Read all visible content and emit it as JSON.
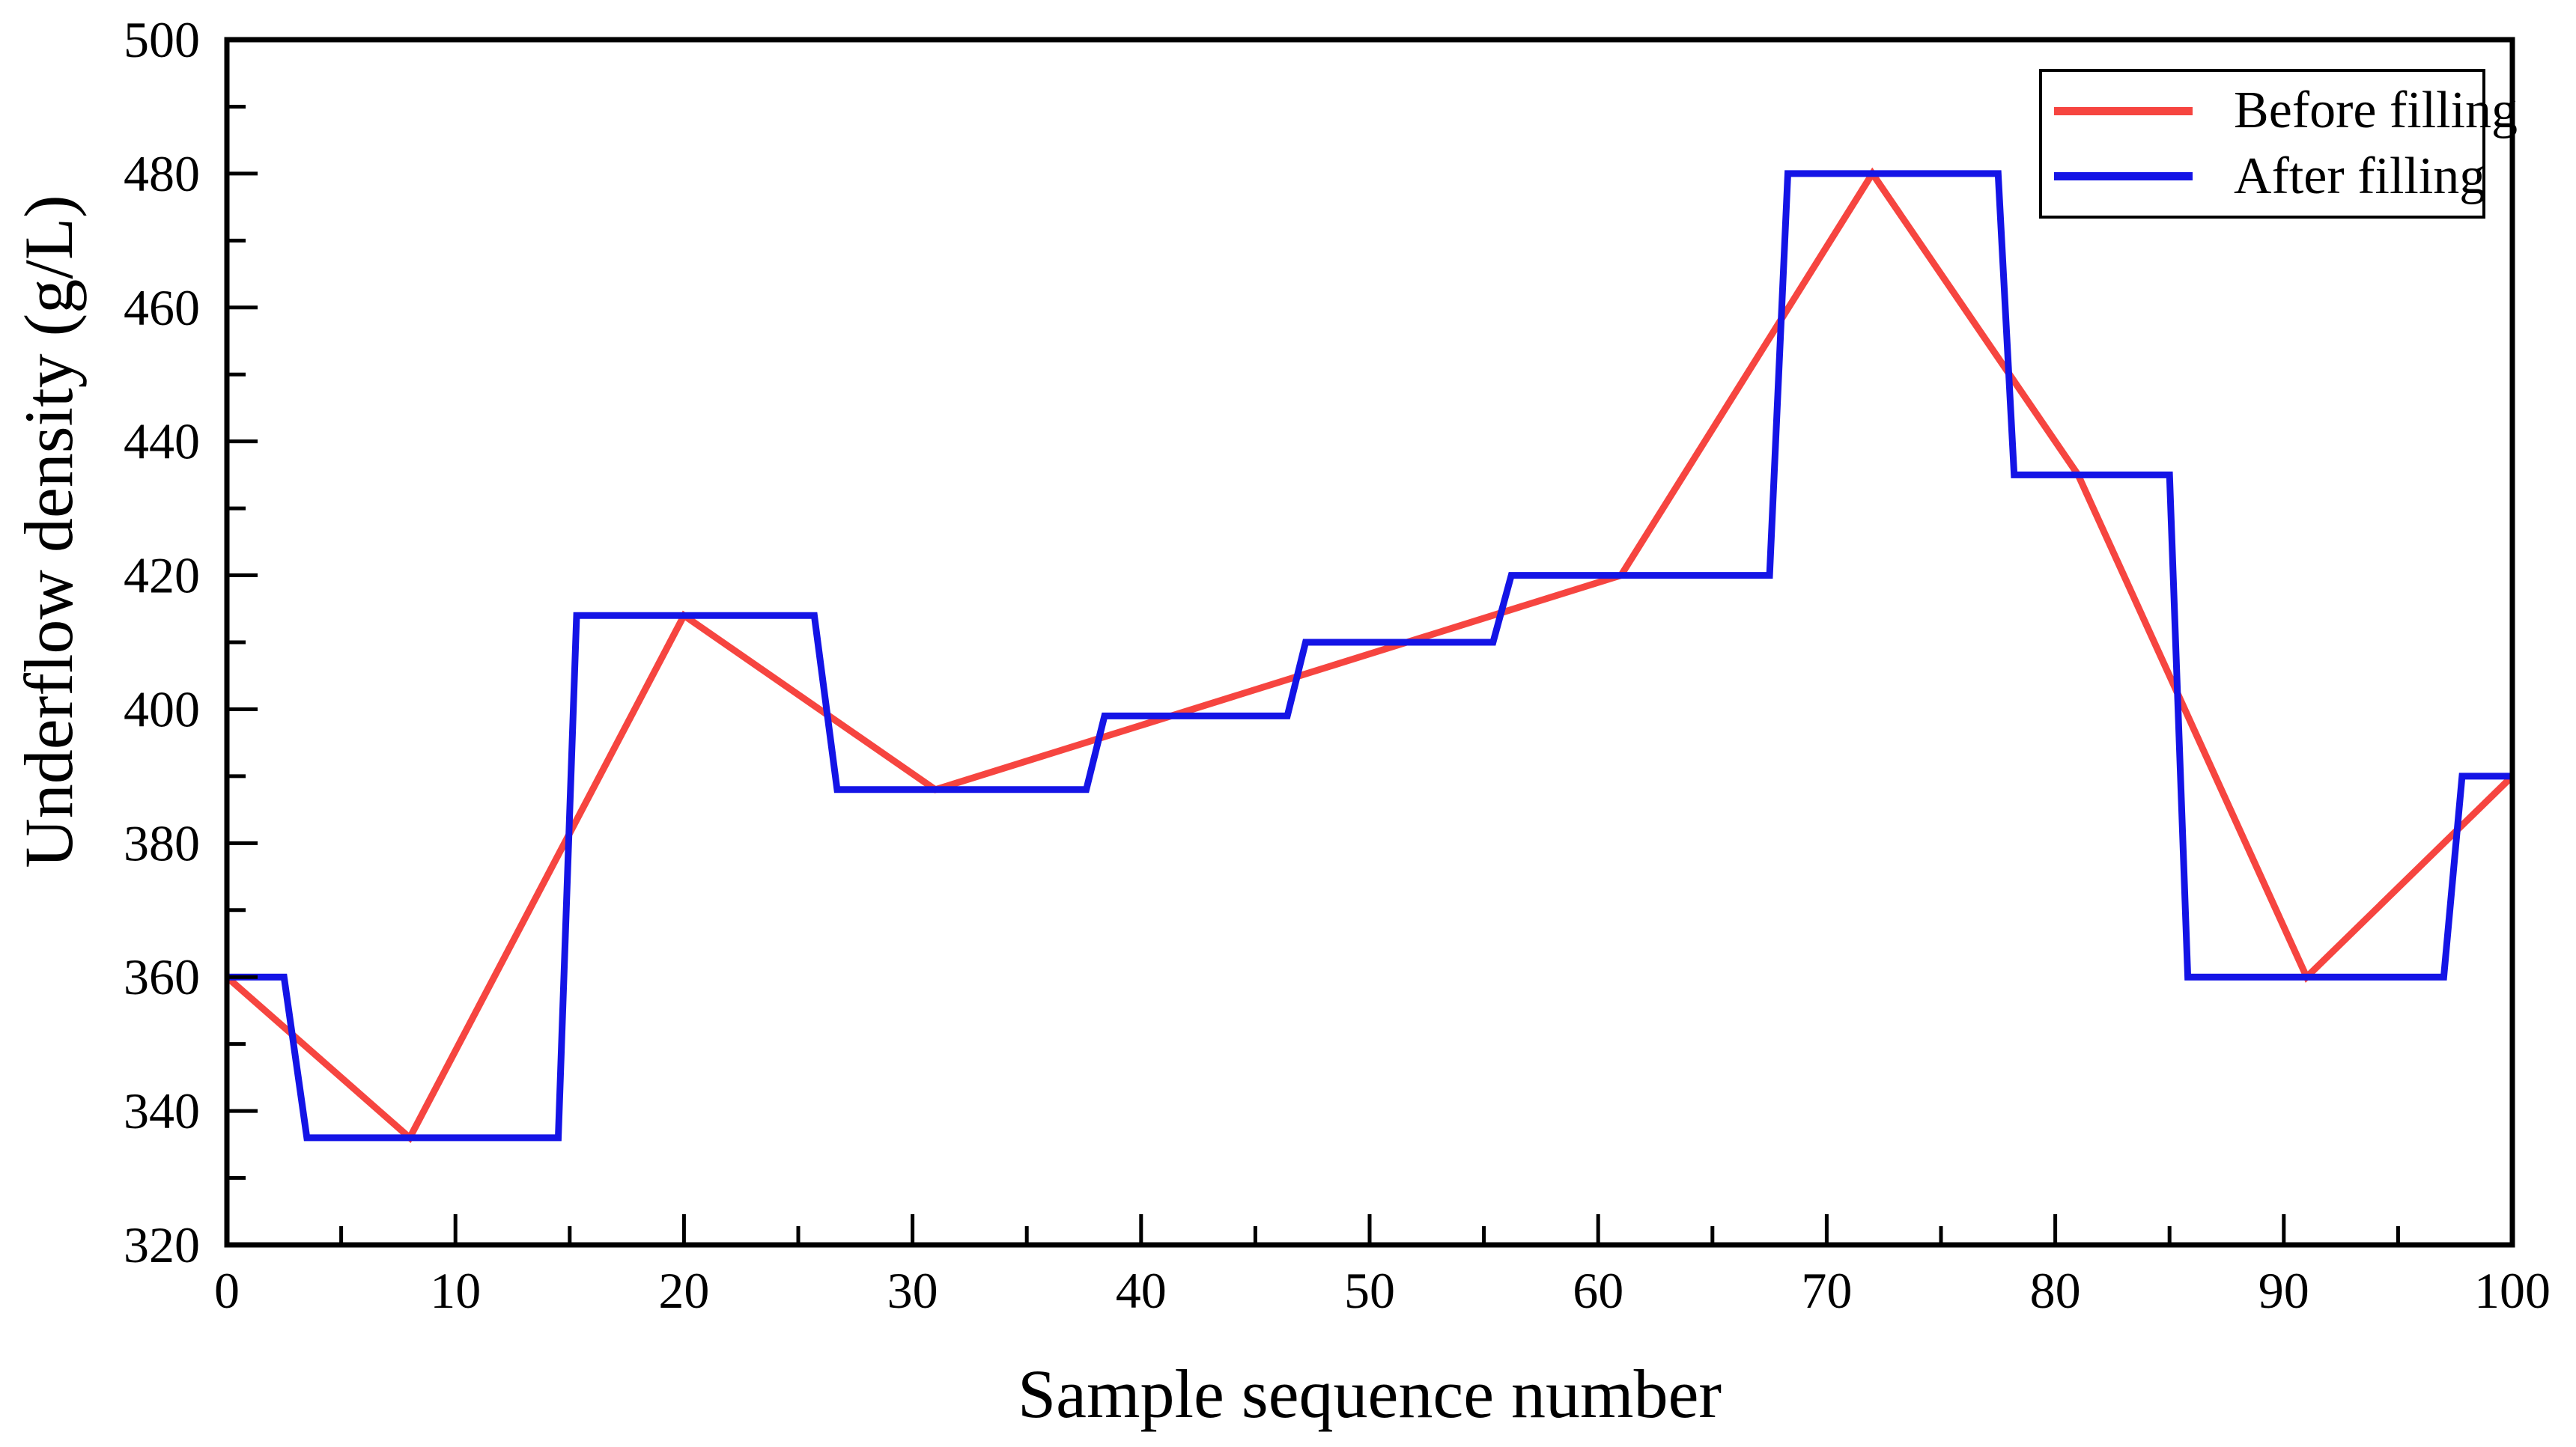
{
  "figure": {
    "background_color": "#ffffff",
    "frame_color": "#000000"
  },
  "chart_data": {
    "type": "line",
    "xlabel": "Sample sequence number",
    "ylabel": "Underflow density (g/L)",
    "xlim": [
      0,
      100
    ],
    "ylim": [
      320,
      500
    ],
    "x_ticks": [
      0,
      10,
      20,
      30,
      40,
      50,
      60,
      70,
      80,
      90,
      100
    ],
    "y_ticks": [
      320,
      340,
      360,
      380,
      400,
      420,
      440,
      460,
      480,
      500
    ],
    "x_minor_step": 5,
    "y_minor_step": 10,
    "grid": false,
    "legend_position": "top-right",
    "series": [
      {
        "name": "Before filling",
        "color": "#f64540",
        "line_width": 9,
        "points": [
          [
            0,
            360
          ],
          [
            8,
            336
          ],
          [
            20,
            414
          ],
          [
            31,
            388
          ],
          [
            61,
            420
          ],
          [
            72,
            480
          ],
          [
            81,
            435
          ],
          [
            91,
            360
          ],
          [
            100,
            390
          ]
        ]
      },
      {
        "name": "After filling",
        "color": "#1414e6",
        "line_width": 9,
        "points": [
          [
            0,
            360
          ],
          [
            2.5,
            360
          ],
          [
            3.5,
            336
          ],
          [
            14.5,
            336
          ],
          [
            15.3,
            414
          ],
          [
            25.7,
            414
          ],
          [
            26.7,
            388
          ],
          [
            37.6,
            388
          ],
          [
            38.4,
            399
          ],
          [
            46.4,
            399
          ],
          [
            47.2,
            410
          ],
          [
            55.4,
            410
          ],
          [
            56.2,
            420
          ],
          [
            67.5,
            420
          ],
          [
            68.3,
            480
          ],
          [
            77.5,
            480
          ],
          [
            78.2,
            435
          ],
          [
            85,
            435
          ],
          [
            85.8,
            360
          ],
          [
            97,
            360
          ],
          [
            97.8,
            390
          ],
          [
            100,
            390
          ]
        ]
      }
    ]
  },
  "legend": {
    "items": [
      {
        "label": "Before filling",
        "color": "#f64540"
      },
      {
        "label": "After filling",
        "color": "#1414e6"
      }
    ]
  }
}
